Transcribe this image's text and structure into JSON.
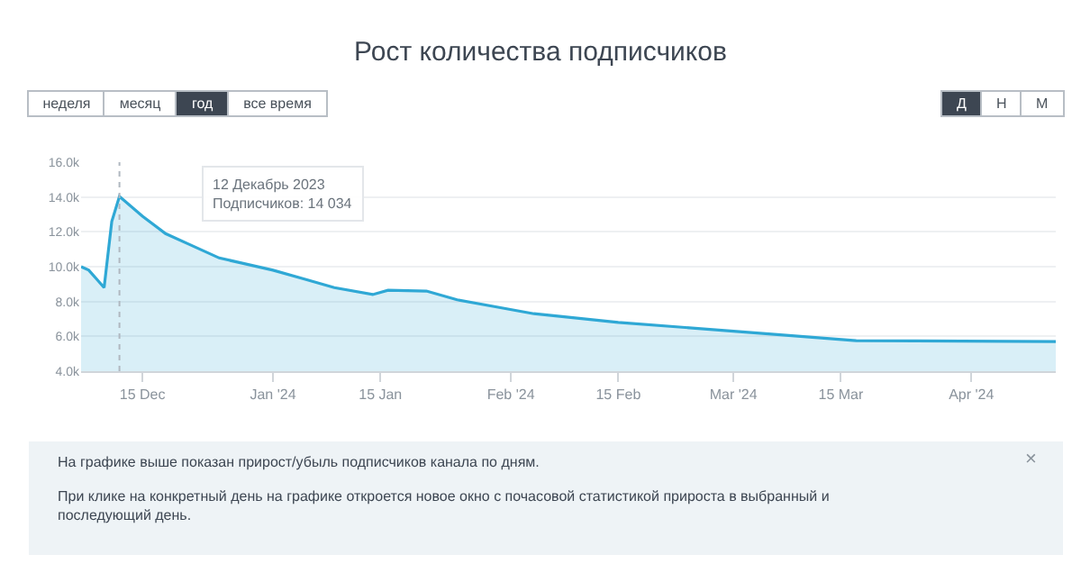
{
  "chart_data": {
    "type": "area",
    "title": "Рост количества подписчиков",
    "x": [
      "2023-12-07",
      "2023-12-08",
      "2023-12-09",
      "2023-12-10",
      "2023-12-11",
      "2023-12-12",
      "2023-12-15",
      "2023-12-18",
      "2023-12-21",
      "2023-12-25",
      "2023-12-28",
      "2024-01-01",
      "2024-01-05",
      "2024-01-09",
      "2024-01-14",
      "2024-01-16",
      "2024-01-21",
      "2024-01-25",
      "2024-01-30",
      "2024-02-04",
      "2024-02-15",
      "2024-03-01",
      "2024-03-17",
      "2024-04-12"
    ],
    "series": [
      {
        "color": "#2fa8d5",
        "values": [
          10000,
          9800,
          9300,
          8800,
          12600,
          14034,
          12900,
          11900,
          11300,
          10500,
          10200,
          9800,
          9300,
          8800,
          8400,
          8650,
          8600,
          8100,
          7700,
          7300,
          6800,
          6300,
          5750,
          5700
        ]
      }
    ],
    "xlim": [
      "2023-12-07",
      "2024-04-12"
    ],
    "xticks": [
      {
        "value": "2023-12-15",
        "label": "15 Dec"
      },
      {
        "value": "2024-01-01",
        "label": "Jan '24"
      },
      {
        "value": "2024-01-15",
        "label": "15 Jan"
      },
      {
        "value": "2024-02-01",
        "label": "Feb '24"
      },
      {
        "value": "2024-02-15",
        "label": "15 Feb"
      },
      {
        "value": "2024-03-01",
        "label": "Mar '24"
      },
      {
        "value": "2024-03-15",
        "label": "15 Mar"
      },
      {
        "value": "2024-04-01",
        "label": "Apr '24"
      }
    ],
    "ylim": [
      4000,
      16000
    ],
    "yticks": [
      {
        "value": 4000,
        "label": "4.0k"
      },
      {
        "value": 6000,
        "label": "6.0k"
      },
      {
        "value": 8000,
        "label": "8.0k"
      },
      {
        "value": 10000,
        "label": "10.0k"
      },
      {
        "value": 12000,
        "label": "12.0k"
      },
      {
        "value": 14000,
        "label": "14.0k"
      },
      {
        "value": 16000,
        "label": "16.0k"
      }
    ],
    "grid": "y",
    "ref_lines": [
      {
        "axis": "x",
        "value": "2023-12-12",
        "line_style": "dotted",
        "color": "#b0b8c0"
      }
    ],
    "annotations": [
      "12 Декабрь 2023\nПодписчиков: 14 034",
      "неделя",
      "месяц",
      "год",
      "все время",
      "Д",
      "Н",
      "М",
      "На графике выше показан прирост/убыль подписчиков канала по дням.",
      "При клике на конкретный день на графике откроется новое окно с почасовой статистикой прироста в выбранный и\nпоследующий день.",
      "×"
    ]
  }
}
